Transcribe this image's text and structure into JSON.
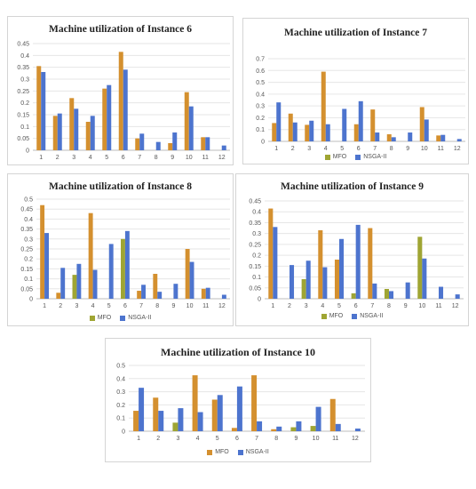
{
  "colors": {
    "mfo": "#D4902F",
    "nsga": "#4D74CE",
    "olive": "#9FA533",
    "grid": "#e6e6e6",
    "axis": "#bdbdbd"
  },
  "chart_data": [
    {
      "type": "bar",
      "title": "Machine utilization of Instance 6",
      "categories": [
        "1",
        "2",
        "3",
        "4",
        "5",
        "6",
        "7",
        "8",
        "9",
        "10",
        "11",
        "12"
      ],
      "ylim": [
        0,
        0.45
      ],
      "yticks": [
        "0",
        "0.05",
        "0.1",
        "0.15",
        "0.2",
        "0.25",
        "0.3",
        "0.35",
        "0.4",
        "0.45"
      ],
      "series": [
        {
          "name": "MFO",
          "values": [
            0.355,
            0.145,
            0.22,
            0.12,
            0.26,
            0.415,
            0.05,
            0,
            0.03,
            0.245,
            0.055,
            0
          ]
        },
        {
          "name": "NSGA-II",
          "values": [
            0.33,
            0.155,
            0.175,
            0.145,
            0.275,
            0.34,
            0.07,
            0.035,
            0.075,
            0.185,
            0.055,
            0.02
          ]
        }
      ],
      "legend_position": "none"
    },
    {
      "type": "bar",
      "title": "Machine utilization of Instance 7",
      "categories": [
        "1",
        "2",
        "3",
        "4",
        "5",
        "6",
        "7",
        "8",
        "9",
        "10",
        "11",
        "12"
      ],
      "ylim": [
        0,
        0.7
      ],
      "yticks": [
        "0",
        "0.1",
        "0.2",
        "0.3",
        "0.4",
        "0.5",
        "0.6",
        "0.7"
      ],
      "series": [
        {
          "name": "MFO",
          "values": [
            0.155,
            0.235,
            0.14,
            0.59,
            0,
            0.145,
            0.27,
            0.06,
            0,
            0.29,
            0.05,
            0
          ]
        },
        {
          "name": "NSGA-II",
          "values": [
            0.33,
            0.16,
            0.175,
            0.145,
            0.275,
            0.34,
            0.075,
            0.035,
            0.075,
            0.185,
            0.055,
            0.02
          ]
        }
      ],
      "legend_position": "bottom"
    },
    {
      "type": "bar",
      "title": "Machine utilization of Instance 8",
      "categories": [
        "1",
        "2",
        "3",
        "4",
        "5",
        "6",
        "7",
        "8",
        "9",
        "10",
        "11",
        "12"
      ],
      "ylim": [
        0,
        0.5
      ],
      "yticks": [
        "0",
        "0.05",
        "0.1",
        "0.15",
        "0.2",
        "0.25",
        "0.3",
        "0.35",
        "0.4",
        "0.45",
        "0.5"
      ],
      "series": [
        {
          "name": "MFO",
          "values": [
            0.47,
            0.03,
            0.12,
            0.43,
            0,
            0.3,
            0.04,
            0.125,
            0,
            0.25,
            0.05,
            0
          ]
        },
        {
          "name": "NSGA-II",
          "values": [
            0.33,
            0.155,
            0.175,
            0.145,
            0.275,
            0.34,
            0.07,
            0.035,
            0.075,
            0.185,
            0.055,
            0.02
          ]
        }
      ],
      "legend_position": "bottom"
    },
    {
      "type": "bar",
      "title": "Machine utilization of Instance 9",
      "categories": [
        "1",
        "2",
        "3",
        "4",
        "5",
        "6",
        "7",
        "8",
        "9",
        "10",
        "11",
        "12"
      ],
      "ylim": [
        0,
        0.45
      ],
      "yticks": [
        "0",
        "0.05",
        "0.1",
        "0.15",
        "0.2",
        "0.25",
        "0.3",
        "0.35",
        "0.4",
        "0.45"
      ],
      "series": [
        {
          "name": "MFO",
          "values": [
            0.415,
            0,
            0.09,
            0.315,
            0.18,
            0.025,
            0.325,
            0.045,
            0,
            0.285,
            0,
            0
          ]
        },
        {
          "name": "NSGA-II",
          "values": [
            0.33,
            0.155,
            0.175,
            0.145,
            0.275,
            0.34,
            0.07,
            0.035,
            0.075,
            0.185,
            0.055,
            0.02
          ]
        }
      ],
      "legend_position": "bottom"
    },
    {
      "type": "bar",
      "title": "Machine utilization of Instance 10",
      "categories": [
        "1",
        "2",
        "3",
        "4",
        "5",
        "6",
        "7",
        "8",
        "9",
        "10",
        "11",
        "12"
      ],
      "ylim": [
        0,
        0.5
      ],
      "yticks": [
        "0",
        "0.1",
        "0.2",
        "0.3",
        "0.4",
        "0.5"
      ],
      "series": [
        {
          "name": "MFO",
          "values": [
            0.155,
            0.255,
            0.065,
            0.425,
            0.24,
            0.025,
            0.425,
            0.015,
            0.03,
            0.04,
            0.245,
            0
          ]
        },
        {
          "name": "NSGA-II",
          "values": [
            0.33,
            0.155,
            0.175,
            0.145,
            0.275,
            0.34,
            0.075,
            0.035,
            0.075,
            0.185,
            0.055,
            0.02
          ]
        }
      ],
      "legend_position": "bottom"
    }
  ]
}
